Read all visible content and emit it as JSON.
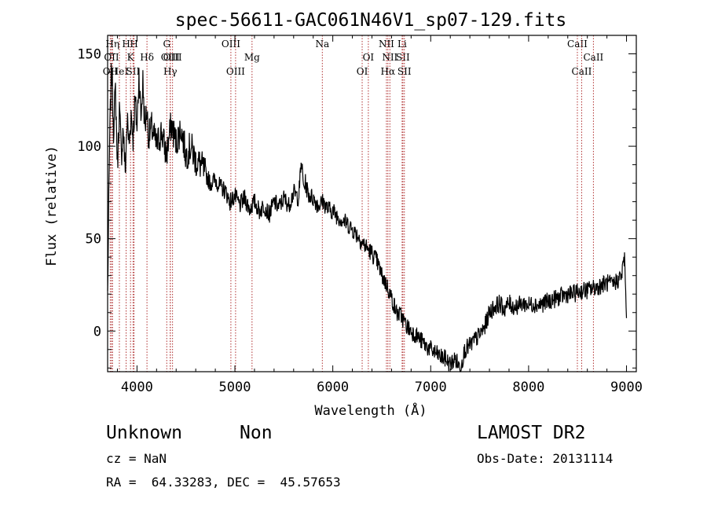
{
  "chart_data": {
    "type": "line",
    "title": "spec-56611-GAC061N46V1_sp07-129.fits",
    "xlabel": "Wavelength (Å)",
    "ylabel": "Flux (relative)",
    "xlim": [
      3700,
      9100
    ],
    "ylim": [
      -22,
      160
    ],
    "xticks": [
      4000,
      5000,
      6000,
      7000,
      8000,
      9000
    ],
    "yticks": [
      0,
      50,
      100,
      150
    ],
    "grid": false,
    "series": [
      {
        "x": [
          3700,
          3720,
          3740,
          3760,
          3780,
          3800,
          3820,
          3840,
          3860,
          3880,
          3900,
          3920,
          3940,
          3960,
          3980,
          4000,
          4020,
          4040,
          4060,
          4080,
          4100,
          4120,
          4150,
          4200,
          4250,
          4300,
          4350,
          4400,
          4450,
          4500,
          4550,
          4600,
          4650,
          4700,
          4750,
          4800,
          4850,
          4900,
          4950,
          5000,
          5050,
          5100,
          5150,
          5200,
          5250,
          5300,
          5350,
          5400,
          5450,
          5500,
          5550,
          5600,
          5650,
          5680,
          5700,
          5720,
          5750,
          5800,
          5850,
          5900,
          5950,
          6000,
          6050,
          6100,
          6150,
          6200,
          6250,
          6300,
          6350,
          6400,
          6450,
          6500,
          6550,
          6600,
          6650,
          6700,
          6730,
          6750,
          6800,
          6850,
          6900,
          6950,
          7000,
          7050,
          7100,
          7150,
          7200,
          7250,
          7300,
          7350,
          7400,
          7450,
          7500,
          7550,
          7600,
          7650,
          7700,
          7750,
          7800,
          7850,
          7900,
          7950,
          8000,
          8050,
          8100,
          8150,
          8200,
          8250,
          8300,
          8350,
          8400,
          8450,
          8500,
          8550,
          8600,
          8650,
          8700,
          8750,
          8800,
          8850,
          8900,
          8950,
          8980,
          9000
        ],
        "y": [
          20,
          100,
          145,
          110,
          130,
          90,
          120,
          95,
          110,
          85,
          115,
          100,
          118,
          105,
          125,
          110,
          140,
          115,
          135,
          110,
          120,
          105,
          110,
          100,
          108,
          95,
          112,
          102,
          110,
          95,
          100,
          92,
          90,
          85,
          80,
          82,
          78,
          76,
          70,
          73,
          68,
          72,
          66,
          70,
          65,
          68,
          63,
          70,
          67,
          72,
          68,
          75,
          72,
          92,
          78,
          80,
          74,
          72,
          68,
          70,
          66,
          65,
          62,
          60,
          58,
          55,
          52,
          48,
          45,
          42,
          38,
          30,
          25,
          18,
          10,
          8,
          5,
          3,
          0,
          -2,
          -5,
          -8,
          -10,
          -12,
          -14,
          -15,
          -18,
          -15,
          -20,
          -10,
          -8,
          -5,
          -2,
          2,
          10,
          13,
          15,
          12,
          15,
          13,
          14,
          15,
          14,
          15,
          14,
          15,
          16,
          17,
          18,
          19,
          20,
          20,
          21,
          22,
          22,
          23,
          24,
          25,
          26,
          25,
          27,
          30,
          40,
          7
        ]
      }
    ],
    "line_marks": [
      {
        "label": "OII",
        "x": 3727,
        "row": 2
      },
      {
        "label": "OII",
        "x": 3740,
        "row": 1
      },
      {
        "label": "Hη",
        "x": 3750,
        "row": 0
      },
      {
        "label": "HeI",
        "x": 3820,
        "row": 2
      },
      {
        "label": "H",
        "x": 3889,
        "row": 0
      },
      {
        "label": "K",
        "x": 3934,
        "row": 1
      },
      {
        "label": "SII",
        "x": 3960,
        "row": 2
      },
      {
        "label": "H",
        "x": 3970,
        "row": 0
      },
      {
        "label": "Hδ",
        "x": 4102,
        "row": 1
      },
      {
        "label": "G",
        "x": 4304,
        "row": 0
      },
      {
        "label": "OIII",
        "x": 4340,
        "row": 1
      },
      {
        "label": "Hγ",
        "x": 4340,
        "row": 2
      },
      {
        "label": "OIII",
        "x": 4363,
        "row": 1
      },
      {
        "label": "OIII",
        "x": 4959,
        "row": 0
      },
      {
        "label": "OIII",
        "x": 5007,
        "row": 2
      },
      {
        "label": "Mg",
        "x": 5175,
        "row": 1
      },
      {
        "label": "Na",
        "x": 5893,
        "row": 0
      },
      {
        "label": "OI",
        "x": 6300,
        "row": 2
      },
      {
        "label": "OI",
        "x": 6363,
        "row": 1
      },
      {
        "label": "NII",
        "x": 6548,
        "row": 0
      },
      {
        "label": "NII",
        "x": 6583,
        "row": 1
      },
      {
        "label": "Hα",
        "x": 6563,
        "row": 2
      },
      {
        "label": "Li",
        "x": 6708,
        "row": 0
      },
      {
        "label": "SII",
        "x": 6716,
        "row": 1
      },
      {
        "label": "SII",
        "x": 6731,
        "row": 2
      },
      {
        "label": "CaII",
        "x": 8498,
        "row": 0
      },
      {
        "label": "CaII",
        "x": 8542,
        "row": 2
      },
      {
        "label": "CaII",
        "x": 8662,
        "row": 1
      }
    ]
  },
  "info": {
    "object_class": "Unknown",
    "subclass": "Non",
    "survey": "LAMOST DR2",
    "redshift": "cz = NaN",
    "obs_date": "Obs-Date: 20131114",
    "coordinates": "RA =  64.33283, DEC =  45.57653"
  },
  "colors": {
    "line_marker": "#b03030",
    "spectrum": "#000000",
    "axes": "#000000"
  }
}
